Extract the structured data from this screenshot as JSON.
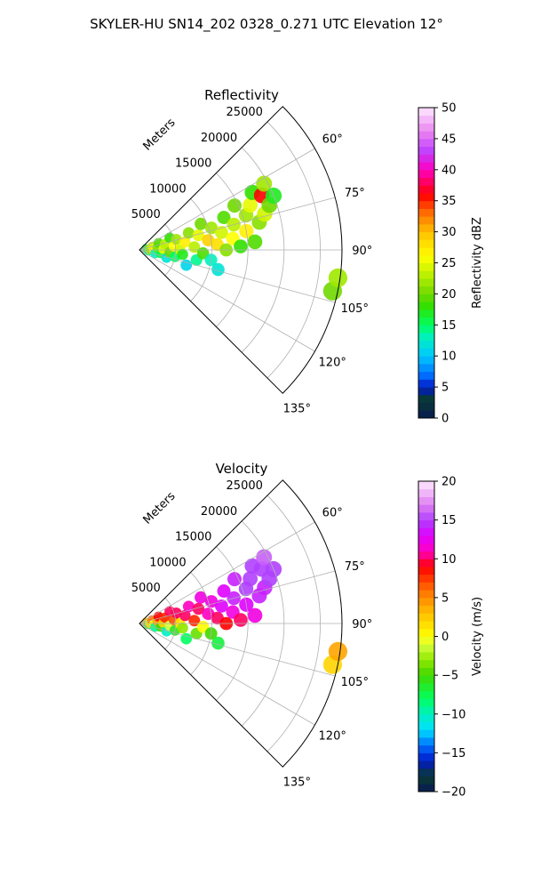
{
  "figure": {
    "title": "SKYLER-HU  SN14_202  0328_0.271 UTC Elevation 12°"
  },
  "chart_data": [
    {
      "type": "heatmap",
      "subtype": "polar-sector",
      "title": "Reflectivity",
      "radial_label": "Meters",
      "radial_ticks": [
        5000,
        10000,
        15000,
        20000,
        25000
      ],
      "radial_tick_labels": [
        "5000",
        "10000",
        "15000",
        "20000",
        "25000"
      ],
      "radial_max": 28000,
      "theta_range_deg": [
        45,
        135
      ],
      "theta_ticks_deg": [
        60,
        75,
        90,
        105,
        120,
        135
      ],
      "theta_tick_labels": [
        "60°",
        "75°",
        "90°",
        "105°",
        "120°",
        "135°"
      ],
      "grid": true,
      "colorbar": {
        "label": "Reflectivity dBZ",
        "min": 0,
        "max": 50,
        "ticks": [
          0,
          5,
          10,
          15,
          20,
          25,
          30,
          35,
          40,
          45,
          50
        ],
        "tick_labels": [
          "0",
          "5",
          "10",
          "15",
          "20",
          "25",
          "30",
          "35",
          "40",
          "45",
          "50"
        ],
        "stops": [
          {
            "v": 0,
            "c": "#081a55"
          },
          {
            "v": 3,
            "c": "#0a3a30"
          },
          {
            "v": 5,
            "c": "#0018c8"
          },
          {
            "v": 7,
            "c": "#0070ff"
          },
          {
            "v": 10,
            "c": "#00c8ff"
          },
          {
            "v": 13,
            "c": "#00f0c0"
          },
          {
            "v": 15,
            "c": "#00ff60"
          },
          {
            "v": 18,
            "c": "#30e000"
          },
          {
            "v": 20,
            "c": "#70d800"
          },
          {
            "v": 23,
            "c": "#b8f000"
          },
          {
            "v": 26,
            "c": "#ffff00"
          },
          {
            "v": 30,
            "c": "#ffc000"
          },
          {
            "v": 33,
            "c": "#ff7000"
          },
          {
            "v": 36,
            "c": "#ff0000"
          },
          {
            "v": 40,
            "c": "#ff00c0"
          },
          {
            "v": 43,
            "c": "#c040ff"
          },
          {
            "v": 46,
            "c": "#e880f0"
          },
          {
            "v": 50,
            "c": "#ffe8ff"
          }
        ]
      },
      "echo_cells": [
        {
          "r": 900,
          "theta": 80,
          "v": 17
        },
        {
          "r": 1200,
          "theta": 97,
          "v": 14
        },
        {
          "r": 1400,
          "theta": 88,
          "v": 22
        },
        {
          "r": 1800,
          "theta": 75,
          "v": 24
        },
        {
          "r": 2000,
          "theta": 92,
          "v": 27
        },
        {
          "r": 2200,
          "theta": 103,
          "v": 13
        },
        {
          "r": 2500,
          "theta": 83,
          "v": 21
        },
        {
          "r": 2800,
          "theta": 70,
          "v": 19
        },
        {
          "r": 3000,
          "theta": 99,
          "v": 16
        },
        {
          "r": 3300,
          "theta": 88,
          "v": 25
        },
        {
          "r": 3600,
          "theta": 77,
          "v": 23
        },
        {
          "r": 3900,
          "theta": 106,
          "v": 12
        },
        {
          "r": 4200,
          "theta": 94,
          "v": 20
        },
        {
          "r": 4500,
          "theta": 68,
          "v": 18
        },
        {
          "r": 4800,
          "theta": 84,
          "v": 26
        },
        {
          "r": 5000,
          "theta": 101,
          "v": 15
        },
        {
          "r": 5300,
          "theta": 74,
          "v": 22
        },
        {
          "r": 5600,
          "theta": 90,
          "v": 24
        },
        {
          "r": 6000,
          "theta": 96,
          "v": 17
        },
        {
          "r": 6400,
          "theta": 80,
          "v": 27
        },
        {
          "r": 6800,
          "theta": 108,
          "v": 11
        },
        {
          "r": 7200,
          "theta": 71,
          "v": 21
        },
        {
          "r": 7600,
          "theta": 87,
          "v": 23
        },
        {
          "r": 8000,
          "theta": 100,
          "v": 14
        },
        {
          "r": 8400,
          "theta": 76,
          "v": 25
        },
        {
          "r": 8800,
          "theta": 93,
          "v": 19
        },
        {
          "r": 9200,
          "theta": 67,
          "v": 20
        },
        {
          "r": 9600,
          "theta": 82,
          "v": 29
        },
        {
          "r": 10000,
          "theta": 98,
          "v": 13
        },
        {
          "r": 10400,
          "theta": 73,
          "v": 22
        },
        {
          "r": 10800,
          "theta": 86,
          "v": 28
        },
        {
          "r": 11200,
          "theta": 104,
          "v": 12
        },
        {
          "r": 11600,
          "theta": 78,
          "v": 24
        },
        {
          "r": 12000,
          "theta": 90,
          "v": 21
        },
        {
          "r": 12500,
          "theta": 69,
          "v": 19
        },
        {
          "r": 13000,
          "theta": 83,
          "v": 26
        },
        {
          "r": 13500,
          "theta": 75,
          "v": 23
        },
        {
          "r": 14000,
          "theta": 88,
          "v": 18
        },
        {
          "r": 14500,
          "theta": 65,
          "v": 20
        },
        {
          "r": 15000,
          "theta": 80,
          "v": 27
        },
        {
          "r": 15500,
          "theta": 72,
          "v": 22
        },
        {
          "r": 16000,
          "theta": 86,
          "v": 19
        },
        {
          "r": 16500,
          "theta": 68,
          "v": 25
        },
        {
          "r": 17000,
          "theta": 77,
          "v": 21
        },
        {
          "r": 17500,
          "theta": 63,
          "v": 18
        },
        {
          "r": 18000,
          "theta": 74,
          "v": 24
        },
        {
          "r": 18500,
          "theta": 66,
          "v": 36
        },
        {
          "r": 19000,
          "theta": 71,
          "v": 20
        },
        {
          "r": 19500,
          "theta": 62,
          "v": 22
        },
        {
          "r": 20000,
          "theta": 68,
          "v": 17
        },
        {
          "r": 27300,
          "theta": 102,
          "v": 20
        },
        {
          "r": 27700,
          "theta": 98,
          "v": 22
        }
      ]
    },
    {
      "type": "heatmap",
      "subtype": "polar-sector",
      "title": "Velocity",
      "radial_label": "Meters",
      "radial_ticks": [
        5000,
        10000,
        15000,
        20000,
        25000
      ],
      "radial_tick_labels": [
        "5000",
        "10000",
        "15000",
        "20000",
        "25000"
      ],
      "radial_max": 28000,
      "theta_range_deg": [
        45,
        135
      ],
      "theta_ticks_deg": [
        60,
        75,
        90,
        105,
        120,
        135
      ],
      "theta_tick_labels": [
        "60°",
        "75°",
        "90°",
        "105°",
        "120°",
        "135°"
      ],
      "grid": true,
      "colorbar": {
        "label": "Velocity (m/s)",
        "min": -20,
        "max": 20,
        "ticks": [
          -20,
          -15,
          -10,
          -5,
          0,
          5,
          10,
          15,
          20
        ],
        "tick_labels": [
          "−20",
          "−15",
          "−10",
          "−5",
          "0",
          "5",
          "10",
          "15",
          "20"
        ],
        "stops": [
          {
            "v": -20,
            "c": "#081a55"
          },
          {
            "v": -18,
            "c": "#0a3a30"
          },
          {
            "v": -16,
            "c": "#0018c8"
          },
          {
            "v": -14,
            "c": "#0070ff"
          },
          {
            "v": -12,
            "c": "#00e0ff"
          },
          {
            "v": -10,
            "c": "#00f0c0"
          },
          {
            "v": -8,
            "c": "#00ff60"
          },
          {
            "v": -5,
            "c": "#40d800"
          },
          {
            "v": -3,
            "c": "#90e800"
          },
          {
            "v": -1,
            "c": "#d8ff40"
          },
          {
            "v": 0,
            "c": "#ffff00"
          },
          {
            "v": 3,
            "c": "#ffc000"
          },
          {
            "v": 6,
            "c": "#ff7000"
          },
          {
            "v": 9,
            "c": "#ff0000"
          },
          {
            "v": 11,
            "c": "#ff00c0"
          },
          {
            "v": 13,
            "c": "#e000ff"
          },
          {
            "v": 15,
            "c": "#b040ff"
          },
          {
            "v": 17,
            "c": "#e080f0"
          },
          {
            "v": 20,
            "c": "#ffe8ff"
          }
        ]
      },
      "echo_cells": [
        {
          "r": 900,
          "theta": 80,
          "v": 3
        },
        {
          "r": 1200,
          "theta": 97,
          "v": -6
        },
        {
          "r": 1400,
          "theta": 88,
          "v": 1
        },
        {
          "r": 1800,
          "theta": 75,
          "v": 6
        },
        {
          "r": 2000,
          "theta": 92,
          "v": 0
        },
        {
          "r": 2200,
          "theta": 103,
          "v": -9
        },
        {
          "r": 2500,
          "theta": 83,
          "v": 4
        },
        {
          "r": 2800,
          "theta": 70,
          "v": 9
        },
        {
          "r": 3000,
          "theta": 99,
          "v": -5
        },
        {
          "r": 3300,
          "theta": 88,
          "v": 2
        },
        {
          "r": 3600,
          "theta": 77,
          "v": 8
        },
        {
          "r": 3900,
          "theta": 106,
          "v": -10
        },
        {
          "r": 4200,
          "theta": 94,
          "v": -1
        },
        {
          "r": 4500,
          "theta": 68,
          "v": 10
        },
        {
          "r": 4800,
          "theta": 84,
          "v": 7
        },
        {
          "r": 5000,
          "theta": 101,
          "v": -6
        },
        {
          "r": 5300,
          "theta": 74,
          "v": 10
        },
        {
          "r": 5600,
          "theta": 90,
          "v": 1
        },
        {
          "r": 6000,
          "theta": 96,
          "v": -3
        },
        {
          "r": 6400,
          "theta": 80,
          "v": 10
        },
        {
          "r": 6800,
          "theta": 108,
          "v": -8
        },
        {
          "r": 7200,
          "theta": 71,
          "v": 11
        },
        {
          "r": 7600,
          "theta": 87,
          "v": 8
        },
        {
          "r": 8000,
          "theta": 100,
          "v": -4
        },
        {
          "r": 8400,
          "theta": 76,
          "v": 10
        },
        {
          "r": 8800,
          "theta": 93,
          "v": 0
        },
        {
          "r": 9200,
          "theta": 67,
          "v": 12
        },
        {
          "r": 9600,
          "theta": 82,
          "v": 11
        },
        {
          "r": 10000,
          "theta": 98,
          "v": -5
        },
        {
          "r": 10400,
          "theta": 73,
          "v": 12
        },
        {
          "r": 10800,
          "theta": 86,
          "v": 10
        },
        {
          "r": 11200,
          "theta": 104,
          "v": -7
        },
        {
          "r": 11600,
          "theta": 78,
          "v": 13
        },
        {
          "r": 12000,
          "theta": 90,
          "v": 9
        },
        {
          "r": 12500,
          "theta": 69,
          "v": 13
        },
        {
          "r": 13000,
          "theta": 83,
          "v": 12
        },
        {
          "r": 13500,
          "theta": 75,
          "v": 14
        },
        {
          "r": 14000,
          "theta": 88,
          "v": 10
        },
        {
          "r": 14500,
          "theta": 65,
          "v": 14
        },
        {
          "r": 15000,
          "theta": 80,
          "v": 13
        },
        {
          "r": 15500,
          "theta": 72,
          "v": 15
        },
        {
          "r": 16000,
          "theta": 86,
          "v": 12
        },
        {
          "r": 16500,
          "theta": 68,
          "v": 15
        },
        {
          "r": 17000,
          "theta": 77,
          "v": 14
        },
        {
          "r": 17500,
          "theta": 63,
          "v": 15
        },
        {
          "r": 18000,
          "theta": 74,
          "v": 14
        },
        {
          "r": 18500,
          "theta": 66,
          "v": 15
        },
        {
          "r": 19000,
          "theta": 71,
          "v": 15
        },
        {
          "r": 19500,
          "theta": 62,
          "v": 16
        },
        {
          "r": 20000,
          "theta": 68,
          "v": 15
        },
        {
          "r": 27300,
          "theta": 102,
          "v": 2
        },
        {
          "r": 27700,
          "theta": 98,
          "v": 4
        }
      ]
    }
  ]
}
